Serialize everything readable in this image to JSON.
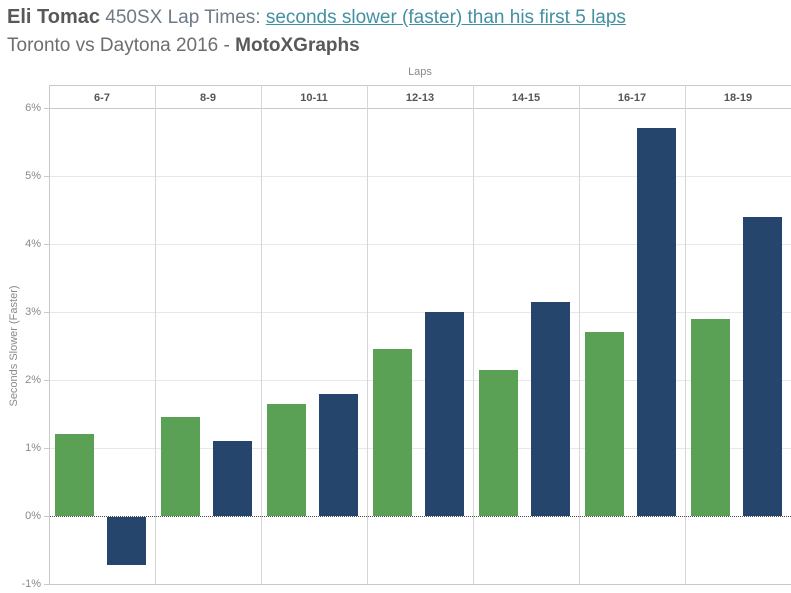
{
  "title": {
    "name": "Eli Tomac",
    "rest": " 450SX Lap Times: ",
    "link": "seconds slower (faster) than his first 5 laps",
    "subtitle_plain": "Toronto vs Daytona 2016 - ",
    "subtitle_bold": "MotoXGraphs"
  },
  "colors": {
    "green_bar": "#5aa155",
    "blue_bar": "#25456d",
    "link_teal": "#4291a2",
    "header_text": "#555555",
    "axis_text": "#8a8a8a"
  },
  "chart_data": {
    "type": "bar",
    "title": "Eli Tomac 450SX Lap Times: seconds slower (faster) than his first 5 laps",
    "subtitle": "Toronto vs Daytona 2016 - MotoXGraphs",
    "column_axis_label": "Laps",
    "categories": [
      "6-7",
      "8-9",
      "10-11",
      "12-13",
      "14-15",
      "16-17",
      "18-19"
    ],
    "series": [
      {
        "name": "Toronto",
        "color": "#5aa155",
        "values": [
          1.2,
          1.45,
          1.65,
          2.45,
          2.15,
          2.7,
          2.9
        ]
      },
      {
        "name": "Daytona",
        "color": "#25456d",
        "values": [
          -0.7,
          1.1,
          1.8,
          3.0,
          3.15,
          5.7,
          4.4
        ]
      }
    ],
    "ylabel": "Seconds Slower (Faster)",
    "ytick_labels": [
      "6%",
      "5%",
      "4%",
      "3%",
      "2%",
      "1%",
      "0%",
      "-1%"
    ],
    "yticks": [
      6,
      5,
      4,
      3,
      2,
      1,
      0,
      -1
    ],
    "ylim": [
      -1,
      6
    ],
    "unit": "percent",
    "grid": "light horizontal gridlines, vertical panel dividers, dotted zero line",
    "legend_position": "none"
  }
}
